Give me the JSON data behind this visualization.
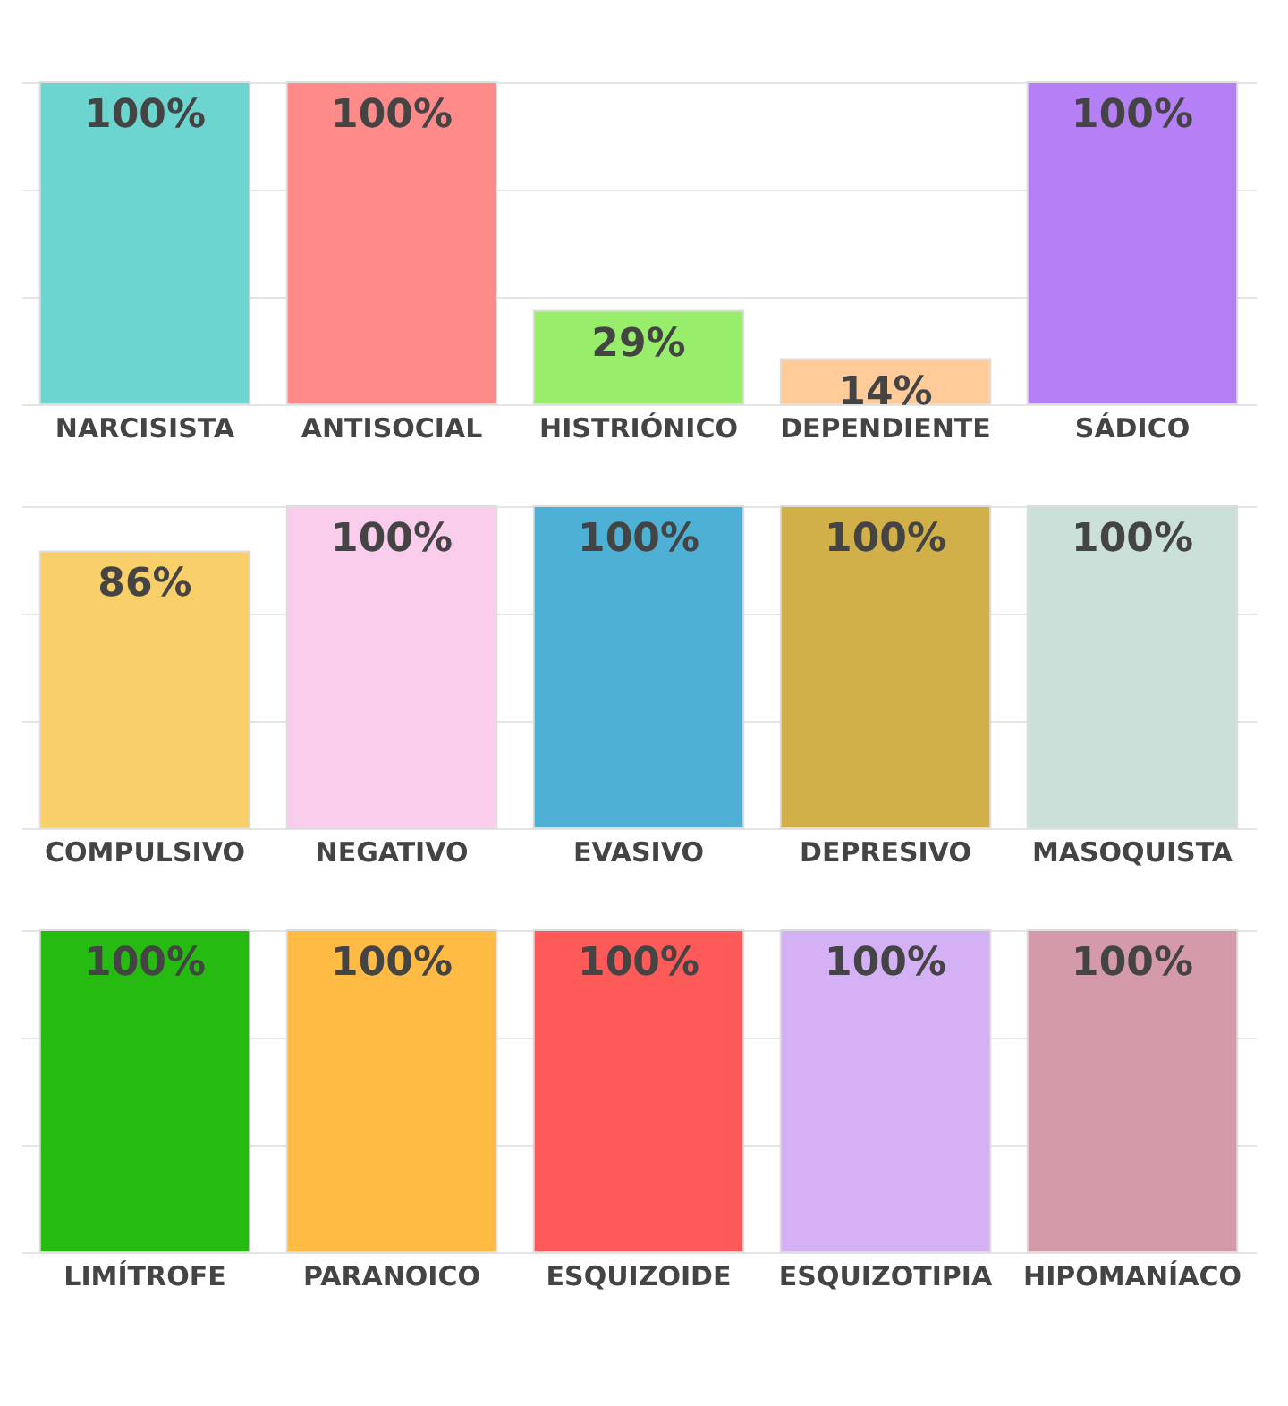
{
  "chart_data": [
    {
      "type": "bar",
      "categories": [
        "NARCISISTA",
        "ANTISOCIAL",
        "HISTRIÓNICO",
        "DEPENDIENTE",
        "SÁDICO"
      ],
      "values": [
        100,
        100,
        29,
        14,
        100
      ],
      "value_labels": [
        "100%",
        "100%",
        "29%",
        "14%",
        "100%"
      ],
      "colors": [
        "#6dd5cf",
        "#ff8a8a",
        "#98ee6a",
        "#ffcc99",
        "#b580f5"
      ],
      "ylim": [
        0,
        100
      ],
      "yticks": [
        {
          "value": 0,
          "label": null
        },
        {
          "value": 33.3,
          "label": null
        },
        {
          "value": 66.7,
          "label": null
        },
        {
          "value": 100,
          "label": null
        }
      ],
      "grid": "y",
      "tick_labels": "x"
    },
    {
      "type": "bar",
      "categories": [
        "COMPULSIVO",
        "NEGATIVO",
        "EVASIVO",
        "DEPRESIVO",
        "MASOQUISTA"
      ],
      "values": [
        86,
        100,
        100,
        100,
        100
      ],
      "value_labels": [
        "86%",
        "100%",
        "100%",
        "100%",
        "100%"
      ],
      "colors": [
        "#f9cf6a",
        "#f9cdeb",
        "#4fb0d5",
        "#d1b04a",
        "#cbe0d9"
      ],
      "ylim": [
        0,
        100
      ],
      "yticks": [
        {
          "value": 0,
          "label": null
        },
        {
          "value": 33.3,
          "label": null
        },
        {
          "value": 66.7,
          "label": null
        },
        {
          "value": 100,
          "label": null
        }
      ],
      "grid": "y",
      "tick_labels": "x"
    },
    {
      "type": "bar",
      "categories": [
        "LIMÍTROFE",
        "PARANOICO",
        "ESQUIZOIDE",
        "ESQUIZOTIPIA",
        "HIPOMANÍACO"
      ],
      "values": [
        100,
        100,
        100,
        100,
        100
      ],
      "value_labels": [
        "100%",
        "100%",
        "100%",
        "100%",
        "100%"
      ],
      "colors": [
        "#26bb10",
        "#ffbb44",
        "#ff5a5a",
        "#d4b0f5",
        "#d49aaa"
      ],
      "ylim": [
        0,
        100
      ],
      "yticks": [
        {
          "value": 0,
          "label": null
        },
        {
          "value": 33.3,
          "label": null
        },
        {
          "value": 66.7,
          "label": null
        },
        {
          "value": 100,
          "label": null
        }
      ],
      "grid": "y",
      "tick_labels": "x"
    }
  ]
}
